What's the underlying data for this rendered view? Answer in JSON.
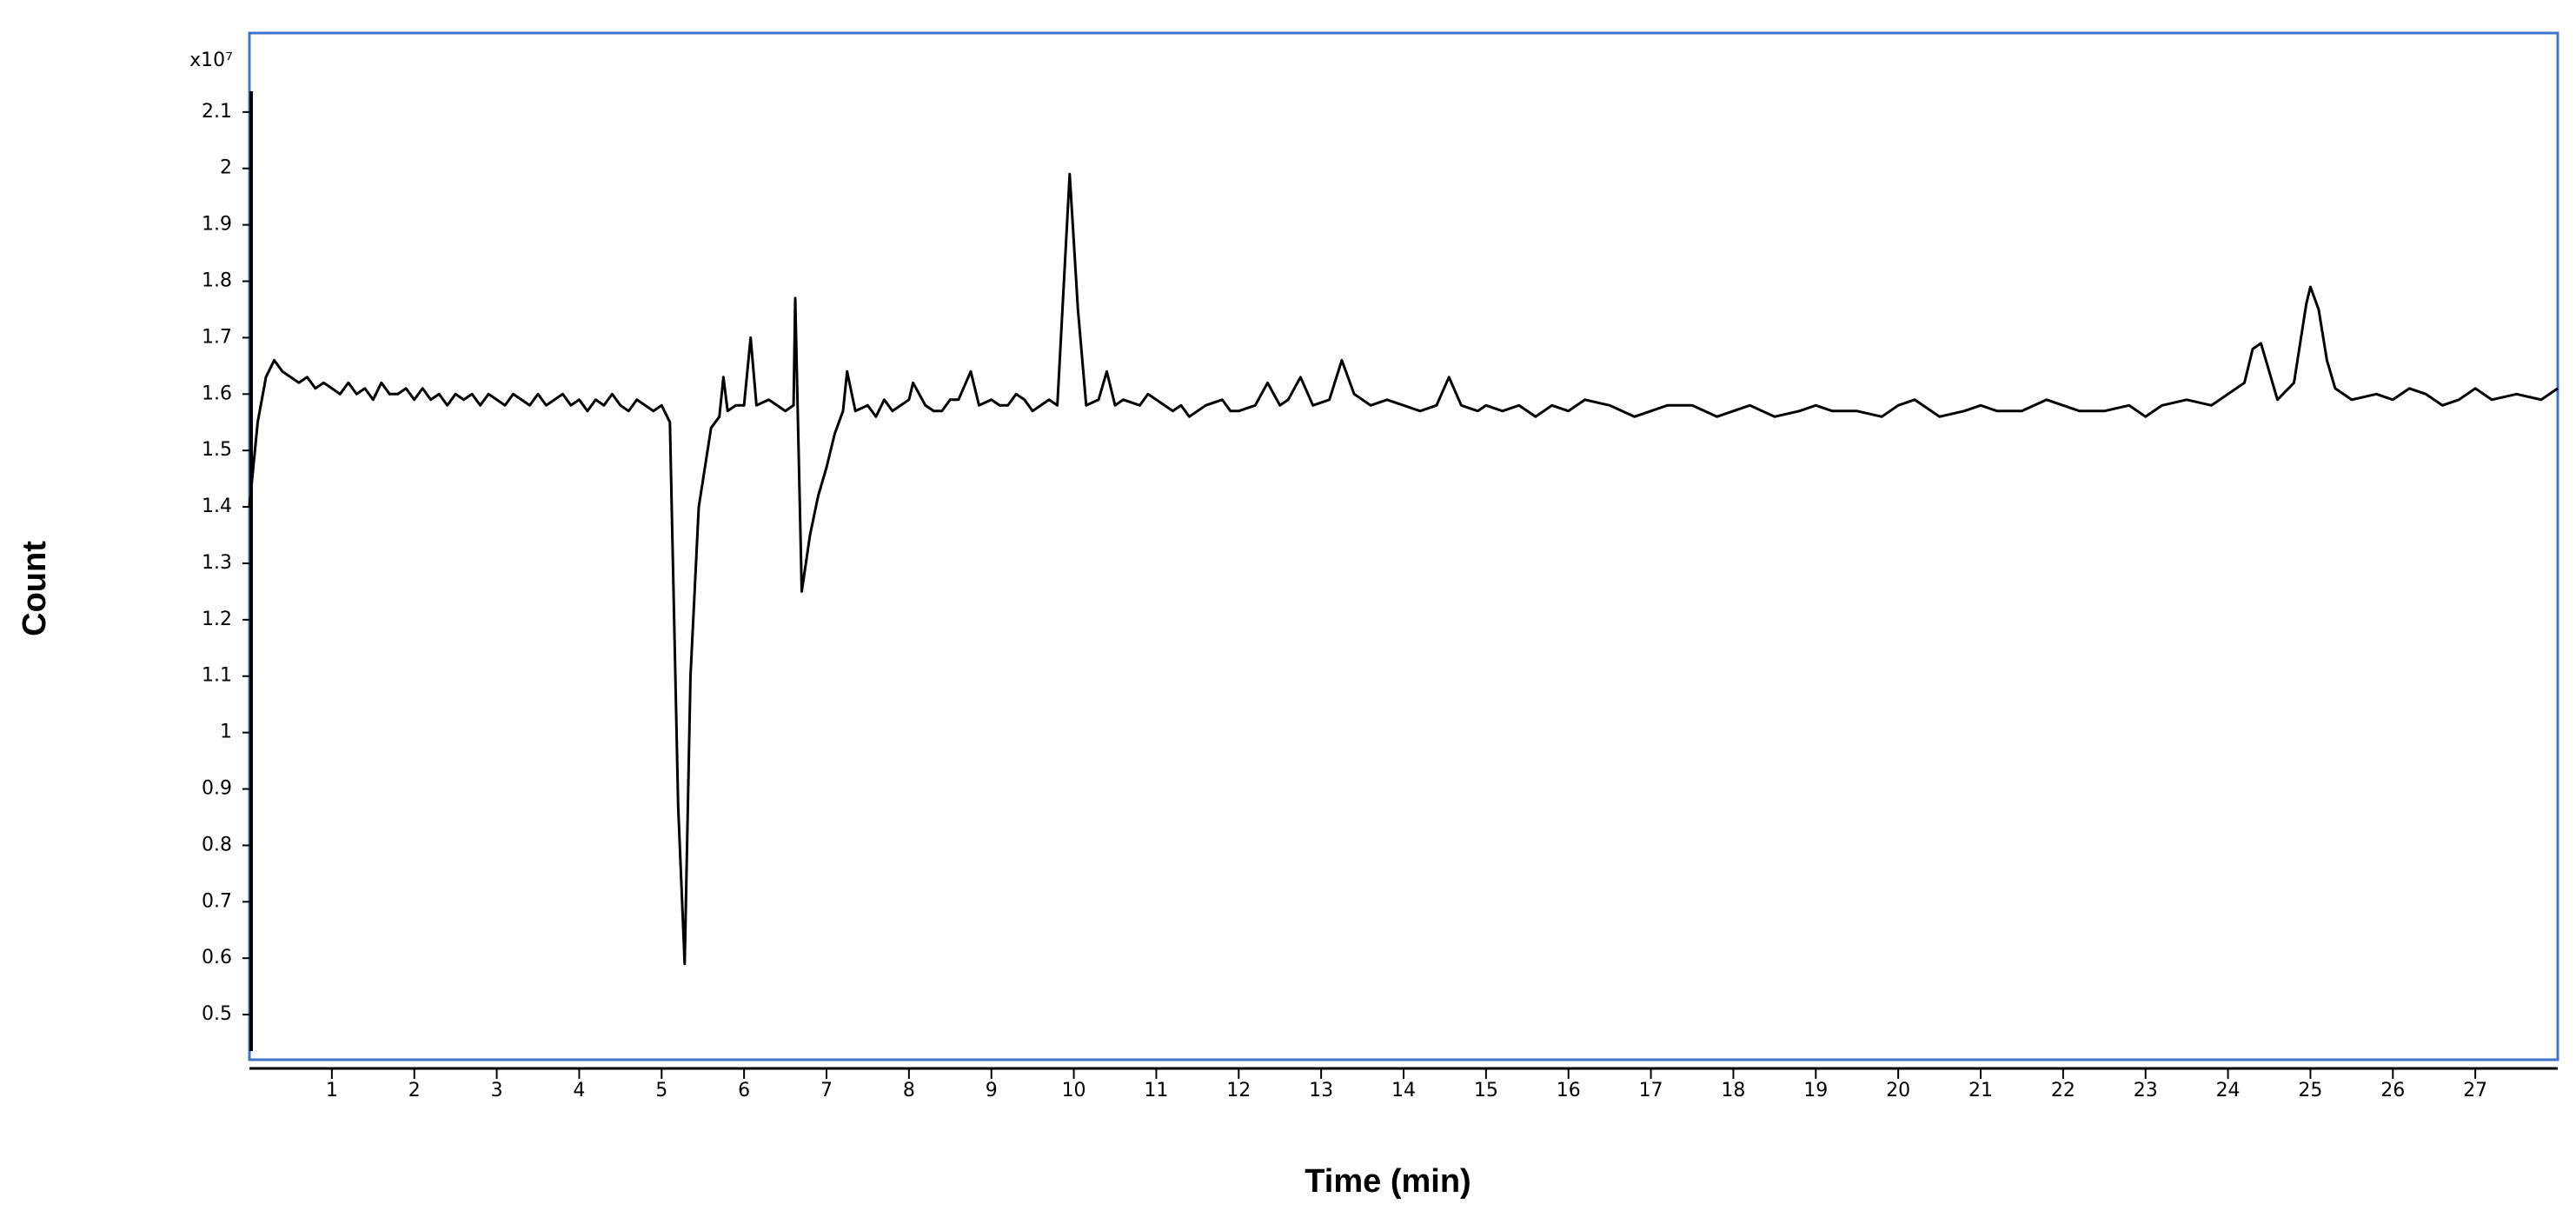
{
  "chart_data": {
    "type": "line",
    "x_label": "Time (min)",
    "y_label": "Count",
    "y_multiplier": "x10⁷",
    "x": [
      0,
      0.1,
      0.2,
      0.3,
      0.4,
      0.5,
      0.6,
      0.7,
      0.8,
      0.9,
      1.0,
      1.1,
      1.2,
      1.3,
      1.4,
      1.5,
      1.6,
      1.7,
      1.8,
      1.9,
      2.0,
      2.1,
      2.2,
      2.3,
      2.4,
      2.5,
      2.6,
      2.7,
      2.8,
      2.9,
      3.0,
      3.1,
      3.2,
      3.3,
      3.4,
      3.5,
      3.6,
      3.7,
      3.8,
      3.9,
      4.0,
      4.1,
      4.2,
      4.3,
      4.4,
      4.5,
      4.6,
      4.7,
      4.8,
      4.9,
      5.0,
      5.1,
      5.2,
      5.28,
      5.35,
      5.45,
      5.6,
      5.7,
      5.75,
      5.8,
      5.9,
      6.0,
      6.08,
      6.15,
      6.3,
      6.4,
      6.5,
      6.6,
      6.62,
      6.7,
      6.8,
      6.9,
      7.0,
      7.1,
      7.2,
      7.25,
      7.35,
      7.5,
      7.6,
      7.7,
      7.8,
      7.9,
      8.0,
      8.05,
      8.2,
      8.3,
      8.4,
      8.5,
      8.6,
      8.75,
      8.85,
      9.0,
      9.1,
      9.2,
      9.3,
      9.4,
      9.5,
      9.6,
      9.7,
      9.8,
      9.95,
      10.05,
      10.15,
      10.3,
      10.4,
      10.5,
      10.6,
      10.8,
      10.9,
      11.0,
      11.2,
      11.3,
      11.4,
      11.6,
      11.8,
      11.9,
      12.0,
      12.2,
      12.35,
      12.5,
      12.6,
      12.75,
      12.9,
      13.1,
      13.25,
      13.4,
      13.6,
      13.8,
      14.0,
      14.2,
      14.4,
      14.55,
      14.7,
      14.9,
      15.0,
      15.2,
      15.4,
      15.6,
      15.8,
      16.0,
      16.2,
      16.5,
      16.8,
      17.0,
      17.2,
      17.5,
      17.8,
      18.0,
      18.2,
      18.5,
      18.8,
      19.0,
      19.2,
      19.5,
      19.8,
      20.0,
      20.2,
      20.5,
      20.8,
      21.0,
      21.2,
      21.5,
      21.8,
      22.0,
      22.2,
      22.5,
      22.8,
      23.0,
      23.2,
      23.5,
      23.8,
      24.0,
      24.2,
      24.3,
      24.4,
      24.5,
      24.6,
      24.8,
      24.95,
      25.0,
      25.1,
      25.2,
      25.3,
      25.5,
      25.8,
      26.0,
      26.2,
      26.4,
      26.6,
      26.8,
      27.0,
      27.2,
      27.5,
      27.8,
      28.0
    ],
    "series": [
      {
        "color": "#000000",
        "values": [
          1.4,
          1.55,
          1.63,
          1.66,
          1.64,
          1.63,
          1.62,
          1.63,
          1.61,
          1.62,
          1.61,
          1.6,
          1.62,
          1.6,
          1.61,
          1.59,
          1.62,
          1.6,
          1.6,
          1.61,
          1.59,
          1.61,
          1.59,
          1.6,
          1.58,
          1.6,
          1.59,
          1.6,
          1.58,
          1.6,
          1.59,
          1.58,
          1.6,
          1.59,
          1.58,
          1.6,
          1.58,
          1.59,
          1.6,
          1.58,
          1.59,
          1.57,
          1.59,
          1.58,
          1.6,
          1.58,
          1.57,
          1.59,
          1.58,
          1.57,
          1.58,
          1.55,
          0.87,
          0.59,
          1.1,
          1.4,
          1.54,
          1.56,
          1.63,
          1.57,
          1.58,
          1.58,
          1.7,
          1.58,
          1.59,
          1.58,
          1.57,
          1.58,
          1.77,
          1.25,
          1.35,
          1.42,
          1.47,
          1.53,
          1.57,
          1.64,
          1.57,
          1.58,
          1.56,
          1.59,
          1.57,
          1.58,
          1.59,
          1.62,
          1.58,
          1.57,
          1.57,
          1.59,
          1.59,
          1.64,
          1.58,
          1.59,
          1.58,
          1.58,
          1.6,
          1.59,
          1.57,
          1.58,
          1.59,
          1.58,
          1.99,
          1.75,
          1.58,
          1.59,
          1.64,
          1.58,
          1.59,
          1.58,
          1.6,
          1.59,
          1.57,
          1.58,
          1.56,
          1.58,
          1.59,
          1.57,
          1.57,
          1.58,
          1.62,
          1.58,
          1.59,
          1.63,
          1.58,
          1.59,
          1.66,
          1.6,
          1.58,
          1.59,
          1.58,
          1.57,
          1.58,
          1.63,
          1.58,
          1.57,
          1.58,
          1.57,
          1.58,
          1.56,
          1.58,
          1.57,
          1.59,
          1.58,
          1.56,
          1.57,
          1.58,
          1.58,
          1.56,
          1.57,
          1.58,
          1.56,
          1.57,
          1.58,
          1.57,
          1.57,
          1.56,
          1.58,
          1.59,
          1.56,
          1.57,
          1.58,
          1.57,
          1.57,
          1.59,
          1.58,
          1.57,
          1.57,
          1.58,
          1.56,
          1.58,
          1.59,
          1.58,
          1.6,
          1.62,
          1.68,
          1.69,
          1.64,
          1.59,
          1.62,
          1.76,
          1.79,
          1.75,
          1.66,
          1.61,
          1.59,
          1.6,
          1.59,
          1.61,
          1.6,
          1.58,
          1.59,
          1.61,
          1.59,
          1.6,
          1.59,
          1.61
        ]
      }
    ],
    "xlim": [
      0,
      28
    ],
    "xticks": [
      1,
      2,
      3,
      4,
      5,
      6,
      7,
      8,
      9,
      10,
      11,
      12,
      13,
      14,
      15,
      16,
      17,
      18,
      19,
      20,
      21,
      22,
      23,
      24,
      25,
      26,
      27
    ],
    "ylim": [
      0.42,
      2.24
    ],
    "yticks": [
      0.5,
      0.6,
      0.7,
      0.8,
      0.9,
      1,
      1.1,
      1.2,
      1.3,
      1.4,
      1.5,
      1.6,
      1.7,
      1.8,
      1.9,
      2,
      2.1
    ],
    "frame_color": "#3f74c9"
  }
}
